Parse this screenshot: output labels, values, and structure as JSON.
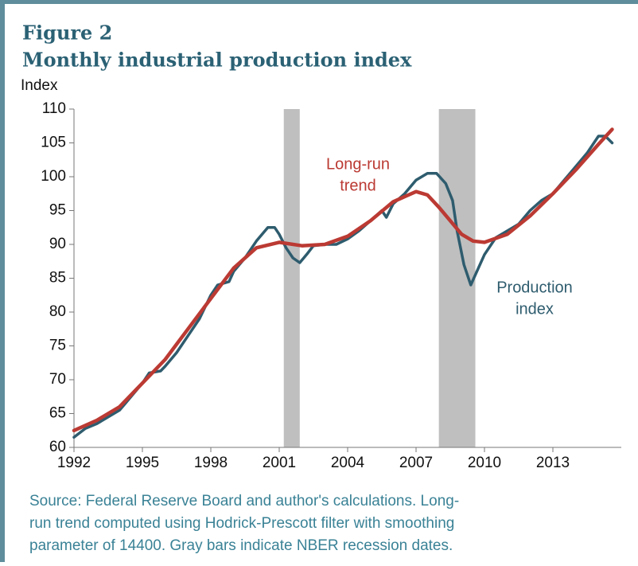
{
  "chart_data": {
    "type": "line",
    "title_lines": [
      "Figure 2",
      "Monthly industrial production index"
    ],
    "y_label": "Index",
    "xlim": [
      1992,
      2016
    ],
    "xticks": [
      1992,
      1995,
      1998,
      2001,
      2004,
      2007,
      2010,
      2013
    ],
    "ylim": [
      60,
      110
    ],
    "yticks": [
      60,
      65,
      70,
      75,
      80,
      85,
      90,
      95,
      100,
      105,
      110
    ],
    "recessions": [
      [
        2001.2,
        2001.9
      ],
      [
        2008.0,
        2009.6
      ]
    ],
    "recession_color": "#bfbfbf",
    "series": [
      {
        "name": "Production index",
        "color": "#2e5c6e",
        "x": [
          1992.0,
          1992.5,
          1993.0,
          1993.5,
          1994.0,
          1994.5,
          1995.0,
          1995.3,
          1995.8,
          1996.0,
          1996.5,
          1997.0,
          1997.5,
          1998.0,
          1998.3,
          1998.8,
          1999.0,
          1999.5,
          2000.0,
          2000.5,
          2000.8,
          2001.0,
          2001.3,
          2001.6,
          2001.9,
          2002.2,
          2002.5,
          2003.0,
          2003.5,
          2004.0,
          2004.5,
          2005.0,
          2005.5,
          2005.7,
          2006.0,
          2006.5,
          2007.0,
          2007.5,
          2007.9,
          2008.3,
          2008.6,
          2008.8,
          2009.1,
          2009.4,
          2009.6,
          2010.0,
          2010.5,
          2011.0,
          2011.5,
          2012.0,
          2012.5,
          2013.0,
          2013.5,
          2014.0,
          2014.5,
          2015.0,
          2015.3,
          2015.6
        ],
        "values": [
          61.5,
          62.8,
          63.5,
          64.5,
          65.5,
          67.5,
          69.5,
          71,
          71.3,
          72,
          74,
          76.5,
          79,
          82.5,
          84,
          84.5,
          86,
          88,
          90.5,
          92.5,
          92.5,
          91.5,
          89.5,
          88,
          87.3,
          88.5,
          89.8,
          90,
          90,
          90.8,
          92,
          93.5,
          95,
          94,
          96,
          97.5,
          99.5,
          100.5,
          100.5,
          99,
          96.5,
          92,
          87,
          84,
          85.5,
          88.5,
          91,
          92,
          93,
          95,
          96.5,
          97.5,
          99.5,
          101.5,
          103.5,
          106,
          106,
          105
        ]
      },
      {
        "name": "Long-run trend",
        "color": "#bb3a33",
        "x": [
          1992,
          1993,
          1994,
          1995,
          1996,
          1997,
          1998,
          1999,
          2000,
          2001,
          2002,
          2003,
          2004,
          2005,
          2006,
          2007,
          2007.5,
          2008,
          2008.5,
          2009,
          2009.5,
          2010,
          2011,
          2012,
          2013,
          2014,
          2015,
          2015.6
        ],
        "values": [
          62.5,
          64,
          66,
          69.5,
          73,
          77.5,
          82,
          86.5,
          89.5,
          90.3,
          89.8,
          90,
          91.2,
          93.5,
          96.3,
          97.8,
          97.3,
          95.5,
          93.5,
          91.5,
          90.5,
          90.3,
          91.5,
          94.2,
          97.5,
          101,
          104.8,
          107
        ]
      }
    ],
    "annotations": [
      {
        "lines": [
          "Long-run",
          "trend"
        ],
        "color": "#bb3a33"
      },
      {
        "lines": [
          "Production",
          "index"
        ],
        "color": "#2e5c6e"
      }
    ],
    "source_lines": [
      "Source: Federal Reserve Board and author's calculations. Long-",
      "run trend computed using Hodrick-Prescott filter with smoothing",
      "parameter of 14400. Gray bars indicate NBER recession dates."
    ]
  }
}
